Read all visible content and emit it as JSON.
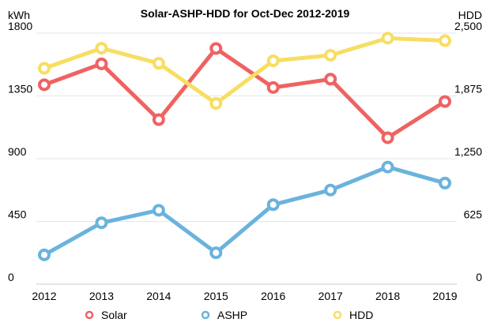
{
  "chart_data": {
    "type": "line",
    "title": "Solar-ASHP-HDD for Oct-Dec 2012-2019",
    "ylabel_left": "kWh",
    "ylabel_right": "HDD",
    "categories": [
      "2012",
      "2013",
      "2014",
      "2015",
      "2016",
      "2017",
      "2018",
      "2019"
    ],
    "y_left": {
      "min": 0,
      "max": 1800,
      "ticks": [
        "0",
        "450",
        "900",
        "1350",
        "1800"
      ]
    },
    "y_right": {
      "min": 0,
      "max": 2500,
      "ticks": [
        "0",
        "625",
        "1,250",
        "1,875",
        "2,500"
      ]
    },
    "series": [
      {
        "name": "Solar",
        "axis": "left",
        "color": "#f06262",
        "values": [
          1430,
          1580,
          1180,
          1690,
          1410,
          1470,
          1050,
          1310
        ]
      },
      {
        "name": "ASHP",
        "axis": "left",
        "color": "#6ab3dd",
        "values": [
          210,
          440,
          530,
          225,
          570,
          675,
          840,
          725
        ]
      },
      {
        "name": "HDD",
        "axis": "right",
        "color": "#f7de62",
        "values": [
          2150,
          2350,
          2200,
          1800,
          2225,
          2280,
          2450,
          2425
        ]
      }
    ],
    "grid": true,
    "legend_position": "bottom"
  }
}
